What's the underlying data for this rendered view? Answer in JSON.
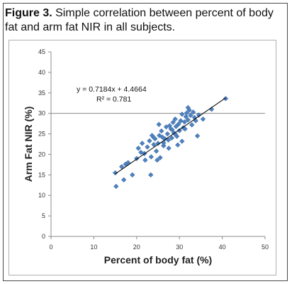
{
  "caption": {
    "figure_label": "Figure 3.",
    "text": " Simple correlation between percent of body fat and arm fat NIR in all subjects."
  },
  "chart_data": {
    "type": "scatter",
    "xlabel": "Percent of body fat (%)",
    "ylabel": "Arm Fat NIR (%)",
    "xlim": [
      0,
      50
    ],
    "ylim": [
      0,
      45
    ],
    "x_ticks": [
      0,
      10,
      20,
      30,
      40,
      50
    ],
    "y_ticks": [
      0,
      5,
      10,
      15,
      20,
      25,
      30,
      35,
      40,
      45
    ],
    "grid": "horizontal line at y=30 only",
    "legend": "none",
    "marker_color": "#4f81bd",
    "trendline": {
      "slope": 0.7184,
      "intercept": 4.4664,
      "equation": "y = 0.7184x + 4.4664",
      "r_squared": "R² = 0.781",
      "line_color": "#000000"
    },
    "points": [
      [
        15.0,
        15.5
      ],
      [
        15.2,
        12.2
      ],
      [
        16.5,
        17.0
      ],
      [
        17.0,
        13.8
      ],
      [
        17.4,
        17.6
      ],
      [
        18.0,
        18.0
      ],
      [
        19.0,
        15.0
      ],
      [
        20.0,
        19.0
      ],
      [
        20.4,
        21.5
      ],
      [
        21.0,
        20.5
      ],
      [
        21.3,
        22.7
      ],
      [
        21.8,
        20.2
      ],
      [
        22.5,
        21.8
      ],
      [
        23.0,
        23.3
      ],
      [
        23.4,
        19.4
      ],
      [
        23.6,
        24.6
      ],
      [
        24.0,
        22.4
      ],
      [
        24.3,
        23.8
      ],
      [
        24.6,
        20.8
      ],
      [
        24.8,
        18.6
      ],
      [
        23.3,
        15.0
      ],
      [
        25.0,
        22.7
      ],
      [
        25.3,
        24.6
      ],
      [
        25.5,
        19.2
      ],
      [
        25.8,
        25.7
      ],
      [
        26.0,
        24.2
      ],
      [
        26.3,
        22.1
      ],
      [
        26.6,
        23.8
      ],
      [
        26.9,
        26.7
      ],
      [
        27.2,
        25.0
      ],
      [
        27.4,
        23.5
      ],
      [
        27.7,
        27.0
      ],
      [
        28.0,
        26.2
      ],
      [
        28.2,
        24.0
      ],
      [
        28.5,
        27.8
      ],
      [
        28.7,
        25.2
      ],
      [
        29.0,
        28.6
      ],
      [
        29.2,
        26.8
      ],
      [
        29.4,
        24.4
      ],
      [
        29.6,
        22.3
      ],
      [
        29.8,
        27.4
      ],
      [
        30.0,
        25.8
      ],
      [
        30.3,
        28.2
      ],
      [
        30.6,
        29.8
      ],
      [
        30.9,
        26.5
      ],
      [
        31.2,
        27.9
      ],
      [
        31.5,
        29.2
      ],
      [
        31.7,
        30.1
      ],
      [
        32.0,
        28.4
      ],
      [
        32.3,
        30.8
      ],
      [
        32.6,
        29.5
      ],
      [
        32.9,
        27.2
      ],
      [
        33.2,
        30.3
      ],
      [
        33.5,
        29.0
      ],
      [
        33.8,
        28.2
      ],
      [
        34.2,
        24.5
      ],
      [
        34.5,
        29.6
      ],
      [
        35.5,
        28.6
      ],
      [
        37.5,
        31.0
      ],
      [
        40.8,
        33.6
      ],
      [
        22.0,
        18.6
      ],
      [
        25.2,
        27.3
      ],
      [
        28.3,
        26.0
      ],
      [
        26.3,
        22.8
      ],
      [
        30.6,
        23.2
      ],
      [
        29.0,
        25.0
      ],
      [
        31.3,
        26.2
      ],
      [
        32.0,
        31.4
      ],
      [
        27.5,
        21.5
      ],
      [
        24.0,
        24.1
      ]
    ]
  }
}
